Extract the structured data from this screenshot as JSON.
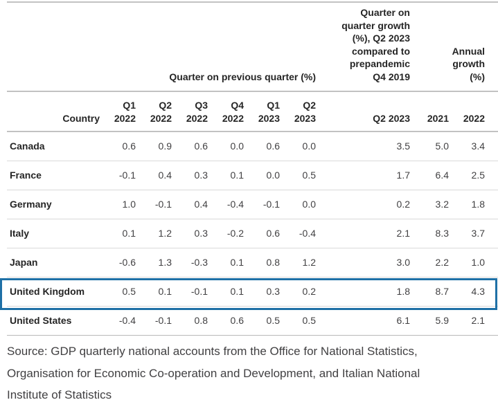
{
  "chart_data": {
    "type": "table",
    "title": "",
    "column_groups": [
      "Quarter on previous quarter (%)",
      "Quarter on quarter growth (%), Q2 2023 compared to prepandemic Q4 2019",
      "Annual growth (%)"
    ],
    "columns": [
      "Country",
      "Q1 2022",
      "Q2 2022",
      "Q3 2022",
      "Q4 2022",
      "Q1 2023",
      "Q2 2023",
      "Q2 2023 vs prepandemic Q4 2019",
      "2021",
      "2022"
    ],
    "rows": [
      [
        "Canada",
        0.6,
        0.9,
        0.6,
        0.0,
        0.6,
        0.0,
        3.5,
        5.0,
        3.4
      ],
      [
        "France",
        -0.1,
        0.4,
        0.3,
        0.1,
        0.0,
        0.5,
        1.7,
        6.4,
        2.5
      ],
      [
        "Germany",
        1.0,
        -0.1,
        0.4,
        -0.4,
        -0.1,
        0.0,
        0.2,
        3.2,
        1.8
      ],
      [
        "Italy",
        0.1,
        1.2,
        0.3,
        -0.2,
        0.6,
        -0.4,
        2.1,
        8.3,
        3.7
      ],
      [
        "Japan",
        -0.6,
        1.3,
        -0.3,
        0.1,
        0.8,
        1.2,
        3.0,
        2.2,
        1.0
      ],
      [
        "United Kingdom",
        0.5,
        0.1,
        -0.1,
        0.1,
        0.3,
        0.2,
        1.8,
        8.7,
        4.3
      ],
      [
        "United States",
        -0.4,
        -0.1,
        0.8,
        0.6,
        0.5,
        0.5,
        6.1,
        5.9,
        2.1
      ]
    ],
    "highlighted_row": "United Kingdom",
    "source": "Source: GDP quarterly national accounts from the Office for National Statistics, Organisation for Economic Co-operation and Development, and Italian National Institute of Statistics"
  },
  "table": {
    "group_headers": {
      "quarter_on_previous": "Quarter on previous quarter (%)",
      "q2_2023_vs_prepandemic": "Quarter on\nquarter growth\n(%), Q2 2023\ncompared to\nprepandemic\nQ4 2019",
      "annual_growth": "Annual\ngrowth\n(%)"
    },
    "column_headers": {
      "country": "Country",
      "q1_2022": "Q1\n2022",
      "q2_2022": "Q2\n2022",
      "q3_2022": "Q3\n2022",
      "q4_2022": "Q4\n2022",
      "q1_2023": "Q1\n2023",
      "q2_2023": "Q2\n2023",
      "q2_2023_compared": "Q2 2023",
      "y2021": "2021",
      "y2022": "2022"
    },
    "rows": [
      {
        "country": "Canada",
        "values": [
          "0.6",
          "0.9",
          "0.6",
          "0.0",
          "0.6",
          "0.0",
          "3.5",
          "5.0",
          "3.4"
        ],
        "highlighted": false
      },
      {
        "country": "France",
        "values": [
          "-0.1",
          "0.4",
          "0.3",
          "0.1",
          "0.0",
          "0.5",
          "1.7",
          "6.4",
          "2.5"
        ],
        "highlighted": false
      },
      {
        "country": "Germany",
        "values": [
          "1.0",
          "-0.1",
          "0.4",
          "-0.4",
          "-0.1",
          "0.0",
          "0.2",
          "3.2",
          "1.8"
        ],
        "highlighted": false
      },
      {
        "country": "Italy",
        "values": [
          "0.1",
          "1.2",
          "0.3",
          "-0.2",
          "0.6",
          "-0.4",
          "2.1",
          "8.3",
          "3.7"
        ],
        "highlighted": false
      },
      {
        "country": "Japan",
        "values": [
          "-0.6",
          "1.3",
          "-0.3",
          "0.1",
          "0.8",
          "1.2",
          "3.0",
          "2.2",
          "1.0"
        ],
        "highlighted": false
      },
      {
        "country": "United Kingdom",
        "values": [
          "0.5",
          "0.1",
          "-0.1",
          "0.1",
          "0.3",
          "0.2",
          "1.8",
          "8.7",
          "4.3"
        ],
        "highlighted": true
      },
      {
        "country": "United States",
        "values": [
          "-0.4",
          "-0.1",
          "0.8",
          "0.6",
          "0.5",
          "0.5",
          "6.1",
          "5.9",
          "2.1"
        ],
        "highlighted": false
      }
    ]
  },
  "source_note": "Source: GDP quarterly national accounts from the Office for National Statistics,\nOrganisation for Economic Co-operation and Development, and Italian National\nInstitute of Statistics",
  "colors": {
    "highlight_border": "#1e70a6",
    "header_rule": "#c2c2c2",
    "row_divider": "#d9d9d9",
    "bottom_rule": "#b8b8b8",
    "header_text": "#252525",
    "body_text": "#414042"
  }
}
